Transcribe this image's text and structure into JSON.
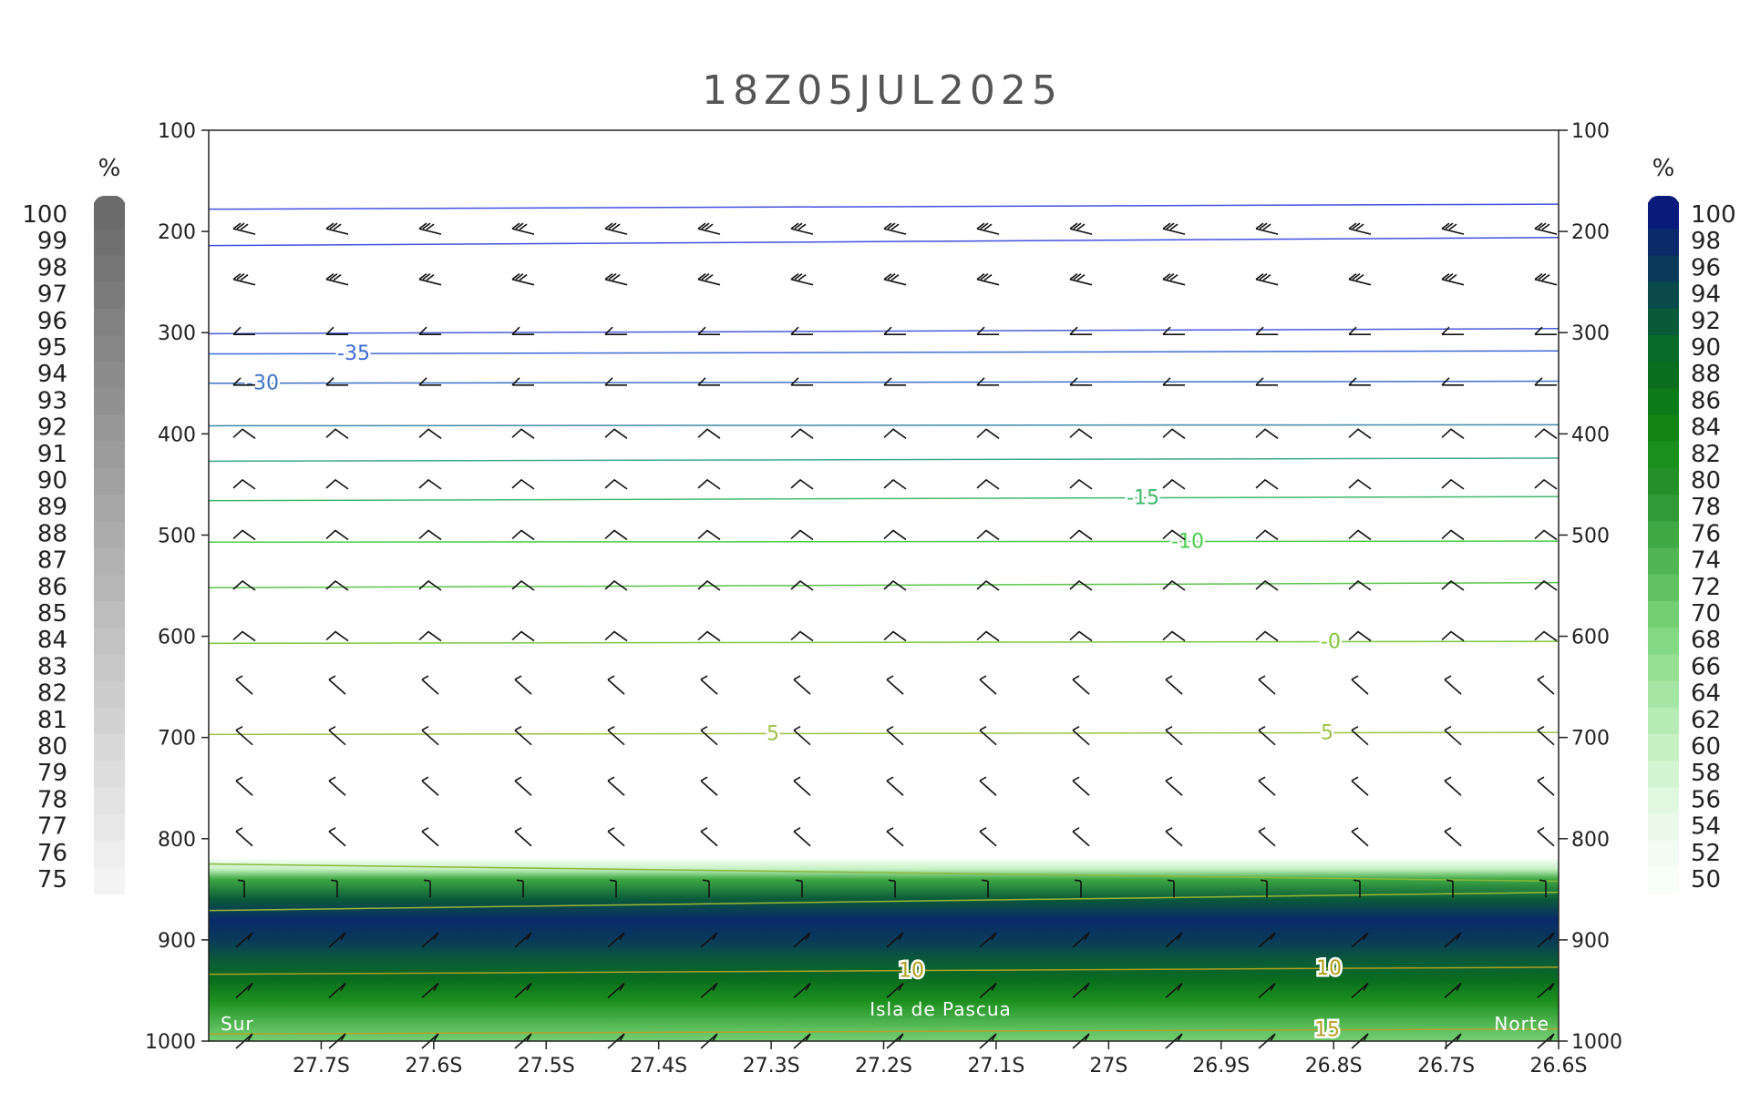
{
  "chart_data": {
    "type": "heatmap",
    "title": "18Z05JUL2025",
    "x_tick_labels": [
      "27.7S",
      "27.6S",
      "27.5S",
      "27.4S",
      "27.3S",
      "27.2S",
      "27.1S",
      "27S",
      "26.9S",
      "26.8S",
      "26.7S",
      "26.6S"
    ],
    "x_ticks": [
      -27.7,
      -27.6,
      -27.5,
      -27.4,
      -27.3,
      -27.2,
      -27.1,
      -27.0,
      -26.9,
      -26.8,
      -26.7,
      -26.6
    ],
    "xlim": [
      -27.8,
      -26.6
    ],
    "y_ticks": [
      100,
      200,
      300,
      400,
      500,
      600,
      700,
      800,
      900,
      1000
    ],
    "ylim": [
      1000,
      100
    ],
    "left_colorbar": {
      "unit": "%",
      "levels": [
        100,
        99,
        98,
        97,
        96,
        95,
        94,
        93,
        92,
        91,
        90,
        89,
        88,
        87,
        86,
        85,
        84,
        83,
        82,
        81,
        80,
        79,
        78,
        77,
        76,
        75
      ],
      "color_high": "#6b6b6b",
      "color_low": "#f3f3f3"
    },
    "right_colorbar": {
      "unit": "%",
      "levels": [
        100,
        98,
        96,
        94,
        92,
        90,
        88,
        86,
        84,
        82,
        80,
        78,
        76,
        74,
        72,
        70,
        68,
        66,
        64,
        62,
        60,
        58,
        56,
        54,
        52,
        50
      ],
      "colors": [
        "#0a1a7a",
        "#0a2a6a",
        "#0a3a5a",
        "#0a4a4a",
        "#0a5a3a",
        "#0a6a2a",
        "#0a6e1e",
        "#0d7a1a",
        "#128516",
        "#1b8f1e",
        "#258f2a",
        "#309a36",
        "#3fa843",
        "#50b552",
        "#62c262",
        "#74ce72",
        "#85d883",
        "#96e094",
        "#a6e6a4",
        "#b6ecb4",
        "#c5f1c3",
        "#d3f5d1",
        "#e0f8df",
        "#ebfaea",
        "#f3fcf2",
        "#f8fef8"
      ]
    },
    "humidity_field": {
      "pressure": [
        820,
        830,
        840,
        860,
        880,
        900,
        920,
        940,
        960,
        990,
        1000
      ],
      "rh": [
        50,
        60,
        76,
        92,
        98,
        96,
        92,
        88,
        82,
        72,
        70
      ]
    },
    "temperature_contours": [
      {
        "label": "-35",
        "p_left": 321,
        "p_right": 318,
        "color": "#3e6ad8"
      },
      {
        "label": "-30",
        "p_left": 350,
        "p_right": 348,
        "color": "#3e72c8"
      },
      {
        "label": "-15",
        "p_left": 466,
        "p_right": 462,
        "color": "#3fb86a"
      },
      {
        "label": "-10",
        "p_left": 507,
        "p_right": 506,
        "color": "#4ccc4c"
      },
      {
        "label": "-0",
        "p_left": 607,
        "p_right": 605,
        "color": "#7ec640"
      },
      {
        "label": "5",
        "p_left": 697,
        "p_right": 695,
        "color": "#9cc246"
      },
      {
        "label": "10",
        "p_left": 934,
        "p_right": 927,
        "color": "#b0a020"
      },
      {
        "label": "15",
        "p_left": 993,
        "p_right": 988,
        "color": "#b8a02a"
      }
    ],
    "unlabeled_contours": [
      {
        "p_left": 178,
        "p_right": 173,
        "color": "#4050e0"
      },
      {
        "p_left": 214,
        "p_right": 206,
        "color": "#4050e0"
      },
      {
        "p_left": 301,
        "p_right": 296,
        "color": "#4a5cd8"
      },
      {
        "p_left": 392,
        "p_right": 391,
        "color": "#3c8aa8"
      },
      {
        "p_left": 427,
        "p_right": 424,
        "color": "#3ca88a"
      },
      {
        "p_left": 552,
        "p_right": 547,
        "color": "#5ac44a"
      },
      {
        "p_left": 825,
        "p_right": 842,
        "color": "#8ab83a"
      },
      {
        "p_left": 871,
        "p_right": 853,
        "color": "#9ab830"
      }
    ],
    "wind_barb_levels": [
      200,
      250,
      300,
      350,
      400,
      450,
      500,
      550,
      600,
      650,
      700,
      750,
      800,
      850,
      900,
      950,
      1000
    ],
    "annotations": {
      "left": "Sur",
      "center": "Isla de Pascua",
      "right": "Norte"
    }
  }
}
